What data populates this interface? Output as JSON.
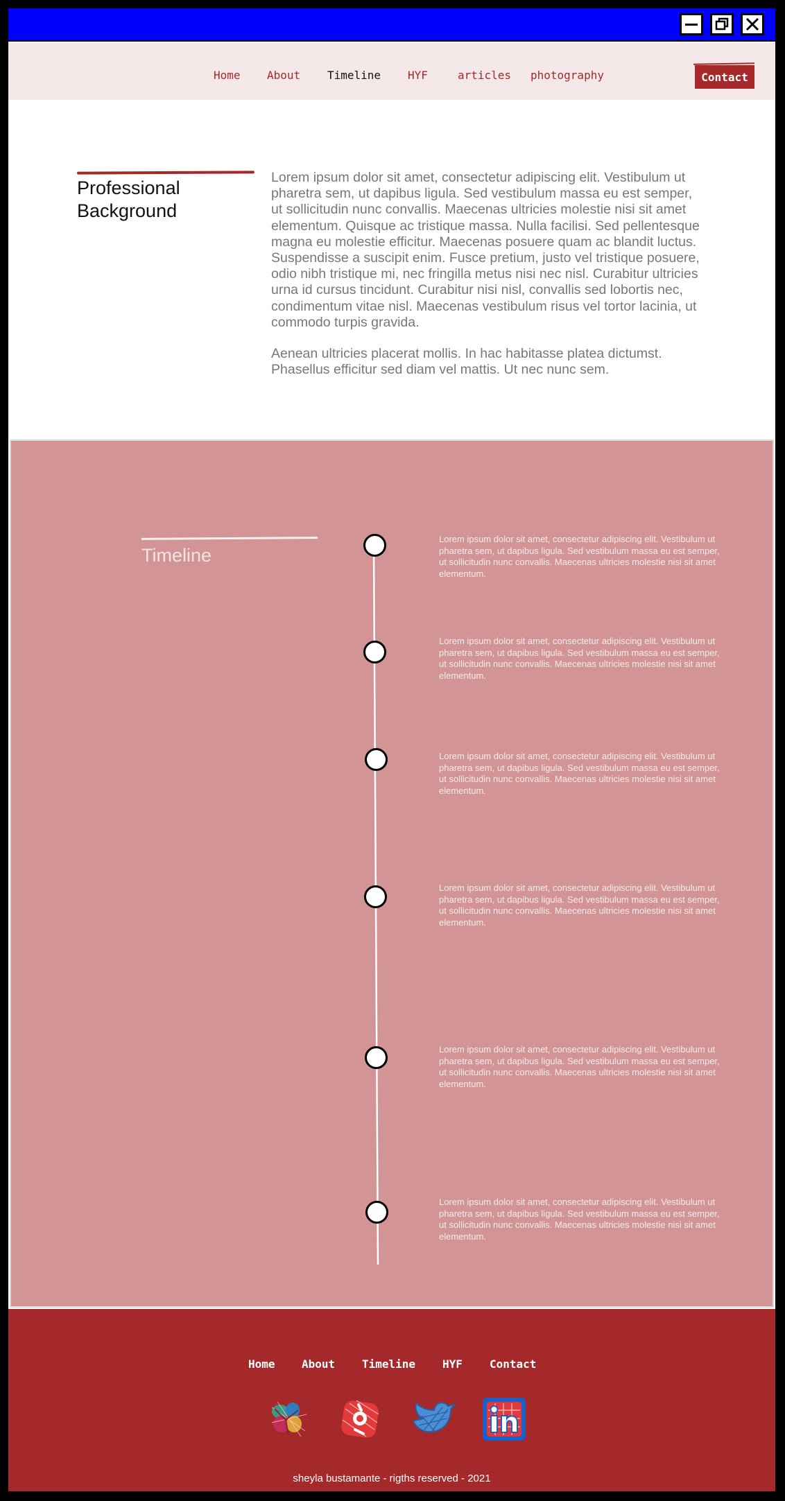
{
  "window": {
    "controls": [
      {
        "icon": "minimize-icon"
      },
      {
        "icon": "maximize-icon"
      },
      {
        "icon": "close-icon"
      }
    ]
  },
  "nav": {
    "items": [
      {
        "label": "Home",
        "active": false
      },
      {
        "label": "About",
        "active": false
      },
      {
        "label": "Timeline",
        "active": true
      },
      {
        "label": "HYF",
        "active": false
      },
      {
        "label": "articles",
        "active": false
      },
      {
        "label": "photography",
        "active": false
      }
    ],
    "contact_label": "Contact"
  },
  "professional": {
    "title": "Professional Background",
    "paragraphs": [
      "Lorem ipsum dolor sit amet, consectetur adipiscing elit. Vestibulum ut pharetra sem, ut dapibus ligula. Sed vestibulum massa eu est semper, ut sollicitudin nunc convallis. Maecenas ultricies molestie nisi sit amet elementum. Quisque ac tristique massa. Nulla facilisi. Sed pellentesque magna eu molestie efficitur. Maecenas posuere quam ac blandit luctus. Suspendisse a suscipit enim. Fusce pretium, justo vel tristique posuere, odio nibh tristique mi, nec fringilla metus nisi nec nisl. Curabitur ultricies urna id cursus tincidunt. Curabitur nisi nisl, convallis sed lobortis nec, condimentum vitae nisl. Maecenas vestibulum risus vel tortor lacinia, ut commodo turpis gravida.",
      "Aenean ultricies placerat mollis. In hac habitasse platea dictumst. Phasellus efficitur sed diam vel mattis. Ut nec nunc sem."
    ]
  },
  "timeline": {
    "title": "Timeline",
    "entries": [
      {
        "text": "Lorem ipsum dolor sit amet, consectetur adipiscing elit. Vestibulum ut pharetra sem, ut dapibus ligula. Sed vestibulum massa eu est semper, ut sollicitudin nunc convallis. Maecenas ultricies molestie nisi sit amet elementum."
      },
      {
        "text": "Lorem ipsum dolor sit amet, consectetur adipiscing elit. Vestibulum ut pharetra sem, ut dapibus ligula. Sed vestibulum massa eu est semper, ut sollicitudin nunc convallis. Maecenas ultricies molestie nisi sit amet elementum."
      },
      {
        "text": "Lorem ipsum dolor sit amet, consectetur adipiscing elit. Vestibulum ut pharetra sem, ut dapibus ligula. Sed vestibulum massa eu est semper, ut sollicitudin nunc convallis. Maecenas ultricies molestie nisi sit amet elementum."
      },
      {
        "text": "Lorem ipsum dolor sit amet, consectetur adipiscing elit. Vestibulum ut pharetra sem, ut dapibus ligula. Sed vestibulum massa eu est semper, ut sollicitudin nunc convallis. Maecenas ultricies molestie nisi sit amet elementum."
      },
      {
        "text": "Lorem ipsum dolor sit amet, consectetur adipiscing elit. Vestibulum ut pharetra sem, ut dapibus ligula. Sed vestibulum massa eu est semper, ut sollicitudin nunc convallis. Maecenas ultricies molestie nisi sit amet elementum."
      },
      {
        "text": "Lorem ipsum dolor sit amet, consectetur adipiscing elit. Vestibulum ut pharetra sem, ut dapibus ligula. Sed vestibulum massa eu est semper, ut sollicitudin nunc convallis. Maecenas ultricies molestie nisi sit amet elementum."
      }
    ]
  },
  "footer": {
    "links": [
      "Home",
      "About",
      "Timeline",
      "HYF",
      "Contact"
    ],
    "social": [
      {
        "icon": "github-icon"
      },
      {
        "icon": "instagram-icon"
      },
      {
        "icon": "twitter-icon"
      },
      {
        "icon": "linkedin-icon"
      }
    ],
    "copyright": "sheyla bustamante - rigths reserved - 2021"
  },
  "colors": {
    "titlebar": "#0000ff",
    "navbar": "#f5e8e8",
    "accent": "#a5292a",
    "timeline_bg": "#d29494",
    "body_text": "#777777"
  }
}
